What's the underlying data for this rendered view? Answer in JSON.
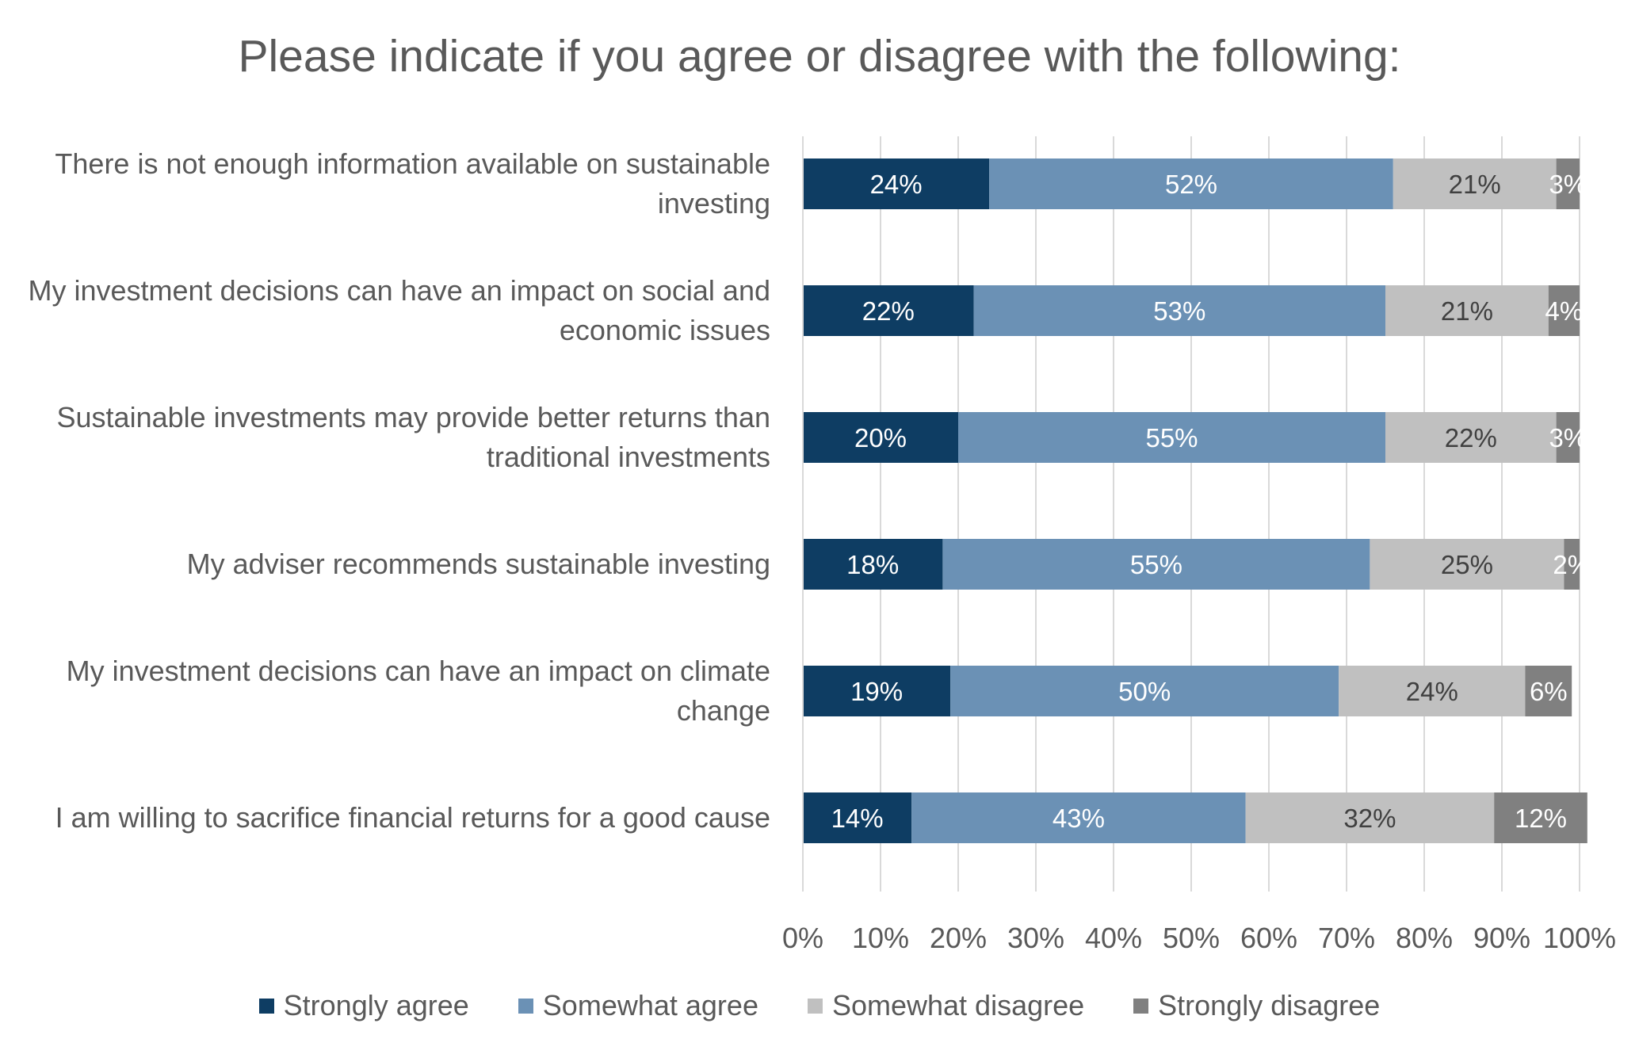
{
  "chart_data": {
    "type": "bar",
    "orientation": "horizontal",
    "stacked": true,
    "title": "Please indicate if you agree or disagree with the following:",
    "categories": [
      "There is not enough information available on sustainable investing",
      "My investment decisions can have an impact on social and economic issues",
      "Sustainable investments may provide better returns than traditional investments",
      "My adviser recommends sustainable investing",
      "My investment decisions can have an impact on climate change",
      "I am willing to sacrifice financial returns for a good cause"
    ],
    "series": [
      {
        "name": "Strongly agree",
        "color": "#0E3D63",
        "label_color": "#ffffff",
        "values": [
          24,
          22,
          20,
          18,
          19,
          14
        ]
      },
      {
        "name": "Somewhat agree",
        "color": "#6B91B5",
        "label_color": "#ffffff",
        "values": [
          52,
          53,
          55,
          55,
          50,
          43
        ]
      },
      {
        "name": "Somewhat disagree",
        "color": "#C0C0C0",
        "label_color": "#404040",
        "values": [
          21,
          21,
          22,
          25,
          24,
          32
        ]
      },
      {
        "name": "Strongly disagree",
        "color": "#808080",
        "label_color": "#ffffff",
        "values": [
          3,
          4,
          3,
          2,
          6,
          12
        ]
      }
    ],
    "xlim": [
      0,
      100
    ],
    "x_ticks": [
      "0%",
      "10%",
      "20%",
      "30%",
      "40%",
      "50%",
      "60%",
      "70%",
      "80%",
      "90%",
      "100%"
    ],
    "value_suffix": "%",
    "grid": true,
    "legend_position": "bottom"
  }
}
